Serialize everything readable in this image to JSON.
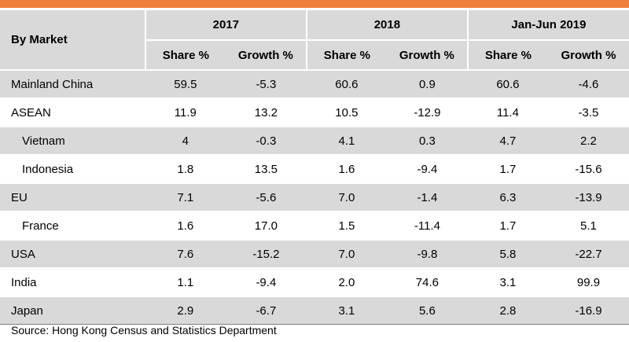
{
  "table": {
    "corner_header": "By Market",
    "groups": [
      "2017",
      "2018",
      "Jan-Jun 2019"
    ],
    "subheaders": [
      "Share %",
      "Growth %",
      "Share %",
      "Growth %",
      "Share %",
      "Growth %"
    ],
    "rows": [
      {
        "market": "Mainland China",
        "values": [
          "59.5",
          "-5.3",
          "60.6",
          "0.9",
          "60.6",
          "-4.6"
        ]
      },
      {
        "market": "ASEAN",
        "values": [
          "11.9",
          "13.2",
          "10.5",
          "-12.9",
          "11.4",
          "-3.5"
        ]
      },
      {
        "market": "Vietnam",
        "values": [
          "4",
          "-0.3",
          "4.1",
          "0.3",
          "4.7",
          "2.2"
        ]
      },
      {
        "market": "Indonesia",
        "values": [
          "1.8",
          "13.5",
          "1.6",
          "-9.4",
          "1.7",
          "-15.6"
        ]
      },
      {
        "market": "EU",
        "values": [
          "7.1",
          "-5.6",
          "7.0",
          "-1.4",
          "6.3",
          "-13.9"
        ]
      },
      {
        "market": "France",
        "values": [
          "1.6",
          "17.0",
          "1.5",
          "-11.4",
          "1.7",
          "5.1"
        ]
      },
      {
        "market": "USA",
        "values": [
          "7.6",
          "-15.2",
          "7.0",
          "-9.8",
          "5.8",
          "-22.7"
        ]
      },
      {
        "market": "India",
        "values": [
          "1.1",
          "-9.4",
          "2.0",
          "74.6",
          "3.1",
          "99.9"
        ]
      },
      {
        "market": "Japan",
        "values": [
          "2.9",
          "-6.7",
          "3.1",
          "5.6",
          "2.8",
          "-16.9"
        ]
      }
    ]
  },
  "source": "Source: Hong Kong Census and Statistics Department",
  "colors": {
    "accent_bar": "#f07f3c",
    "header_fill": "#d9d9d9",
    "shaded_row": "#d9d9d9"
  }
}
